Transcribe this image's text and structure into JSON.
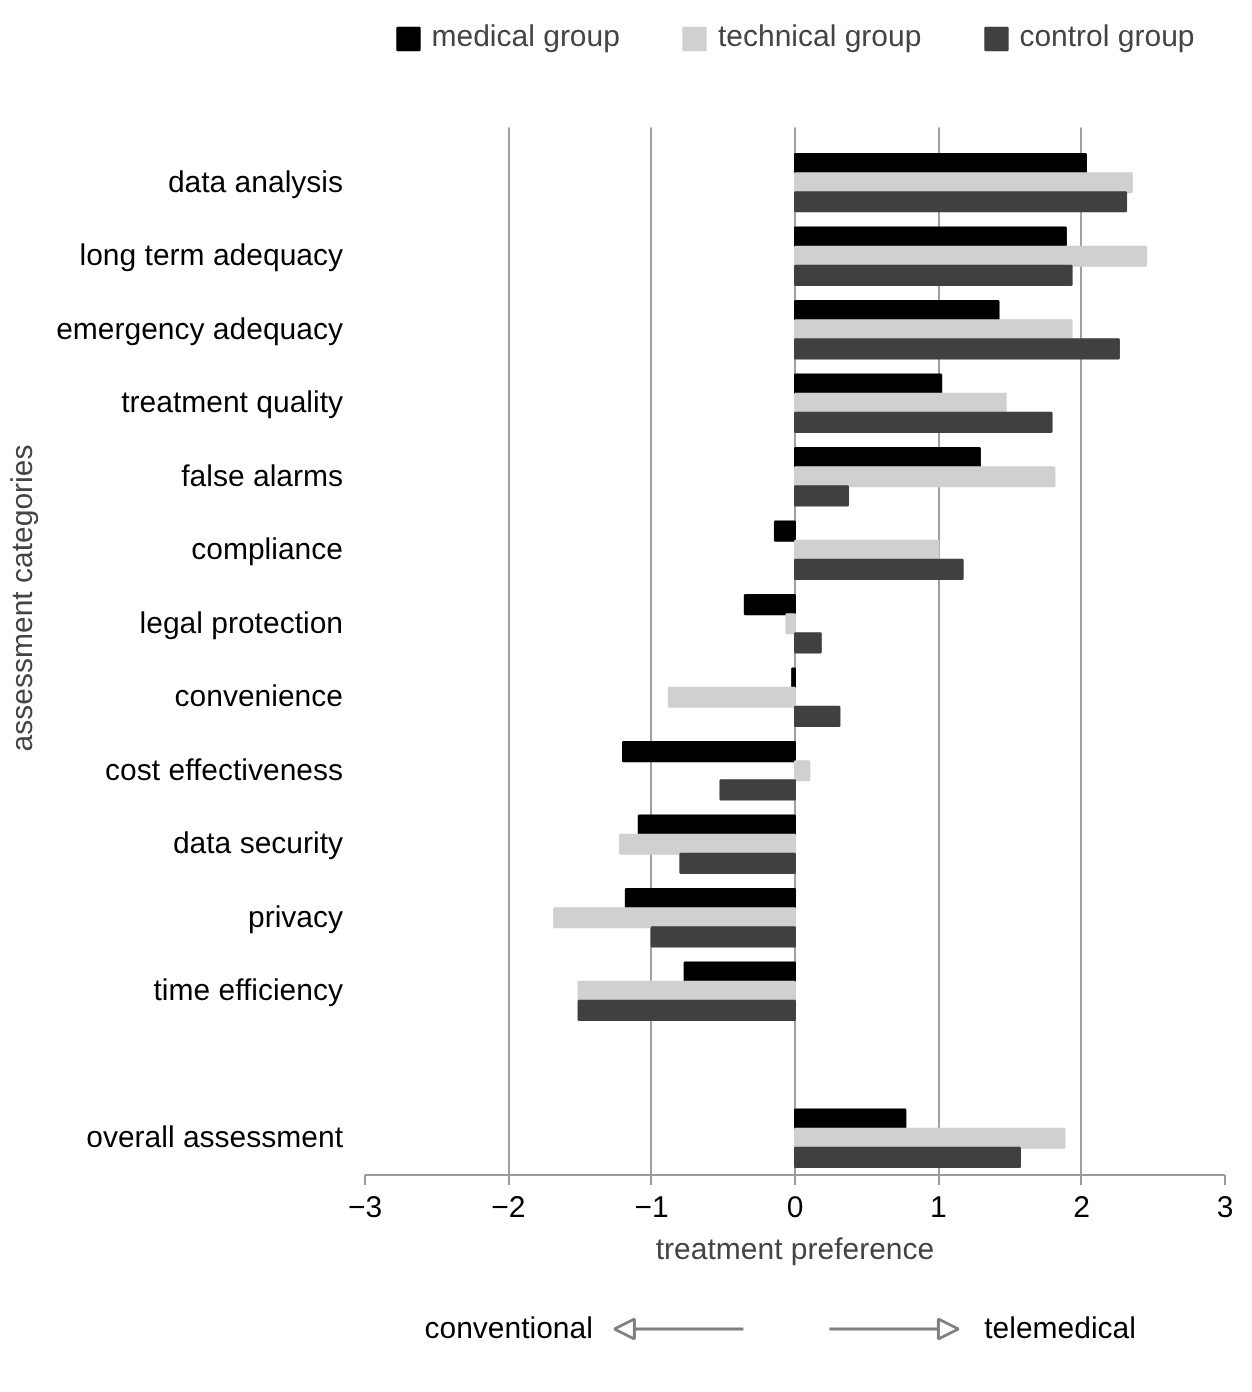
{
  "chart_data": {
    "type": "bar",
    "orientation": "horizontal",
    "xlabel": "treatment preference",
    "ylabel": "assessment categories",
    "categories": [
      "data analysis",
      "long term adequacy",
      "emergency adequacy",
      "treatment quality",
      "false alarms",
      "compliance",
      "legal protection",
      "convenience",
      "cost effectiveness",
      "data security",
      "privacy",
      "time efficiency",
      null,
      "overall assessment"
    ],
    "series": [
      {
        "name": "medical group",
        "color": "#000000",
        "values": [
          2.03,
          1.89,
          1.42,
          1.02,
          1.29,
          -0.14,
          -0.35,
          -0.02,
          -1.2,
          -1.09,
          -1.18,
          -0.77,
          null,
          0.77
        ]
      },
      {
        "name": "technical group",
        "color": "#d0d0d0",
        "values": [
          2.35,
          2.45,
          1.93,
          1.47,
          1.81,
          1.0,
          -0.06,
          -0.88,
          0.1,
          -1.22,
          -1.68,
          -1.51,
          null,
          1.88
        ]
      },
      {
        "name": "control group",
        "color": "#404040",
        "values": [
          2.31,
          1.93,
          2.26,
          1.79,
          0.37,
          1.17,
          0.18,
          0.31,
          -0.52,
          -0.8,
          -1.0,
          -1.51,
          null,
          1.57
        ]
      }
    ],
    "xlim": [
      -3,
      3
    ],
    "xticks": [
      -3,
      -2,
      -1,
      0,
      1,
      2,
      3
    ],
    "grid": "x",
    "legend": "top",
    "annotations": [
      "conventional",
      "telemedical"
    ]
  }
}
